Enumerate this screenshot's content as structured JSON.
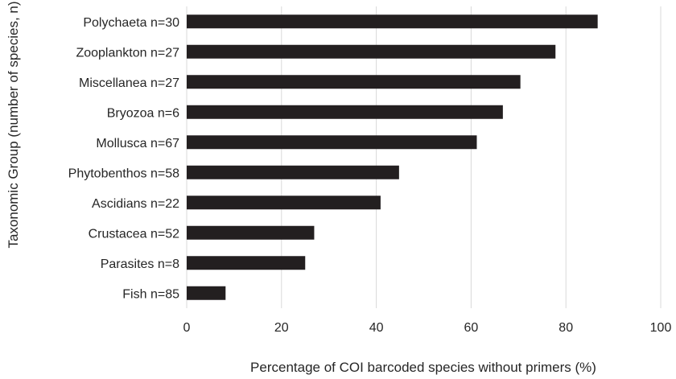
{
  "chart_data": {
    "type": "bar",
    "orientation": "horizontal",
    "categories": [
      "Polychaeta n=30",
      "Zooplankton n=27",
      "Miscellanea n=27",
      "Bryozoa n=6",
      "Mollusca n=67",
      "Phytobenthos n=58",
      "Ascidians n=22",
      "Crustacea n=52",
      "Parasites n=8",
      "Fish n=85"
    ],
    "values": [
      86.7,
      77.8,
      70.4,
      66.7,
      61.2,
      44.8,
      40.9,
      26.9,
      25.0,
      8.2
    ],
    "xlabel": "Percentage of COI barcoded species without primers (%)",
    "ylabel": "Taxonomic Group (number of species, n)",
    "xlim": [
      0,
      100
    ],
    "xticks": [
      "0",
      "20",
      "40",
      "60",
      "80",
      "100"
    ],
    "grid": "vertical",
    "bar_color": "#231f20"
  }
}
